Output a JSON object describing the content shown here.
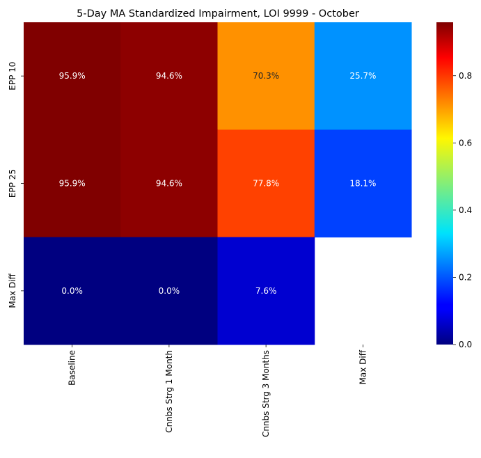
{
  "chart_data": {
    "type": "heatmap",
    "title": "5-Day MA Standardized Impairment, LOI 9999 - October",
    "xlabel": "",
    "ylabel": "",
    "x_categories": [
      "Baseline",
      "Cnnbs Strg 1 Month",
      "Cnnbs Strg 3 Months",
      "Max Diff"
    ],
    "y_categories": [
      "EPP 10",
      "EPP 25",
      "Max Diff"
    ],
    "values": [
      [
        0.959,
        0.946,
        0.703,
        0.257
      ],
      [
        0.959,
        0.946,
        0.778,
        0.181
      ],
      [
        0.0,
        0.0,
        0.076,
        null
      ]
    ],
    "labels": [
      [
        "95.9%",
        "94.6%",
        "70.3%",
        "25.7%"
      ],
      [
        "95.9%",
        "94.6%",
        "77.8%",
        "18.1%"
      ],
      [
        "0.0%",
        "0.0%",
        "7.6%",
        ""
      ]
    ],
    "colormap": "jet",
    "vmin": 0.0,
    "vmax": 0.959,
    "colorbar_ticks": [
      {
        "value": 0.0,
        "label": "0.0"
      },
      {
        "value": 0.2,
        "label": "0.2"
      },
      {
        "value": 0.4,
        "label": "0.4"
      },
      {
        "value": 0.6,
        "label": "0.6"
      },
      {
        "value": 0.8,
        "label": "0.8"
      }
    ],
    "grid": false,
    "legend": "colorbar-right"
  }
}
